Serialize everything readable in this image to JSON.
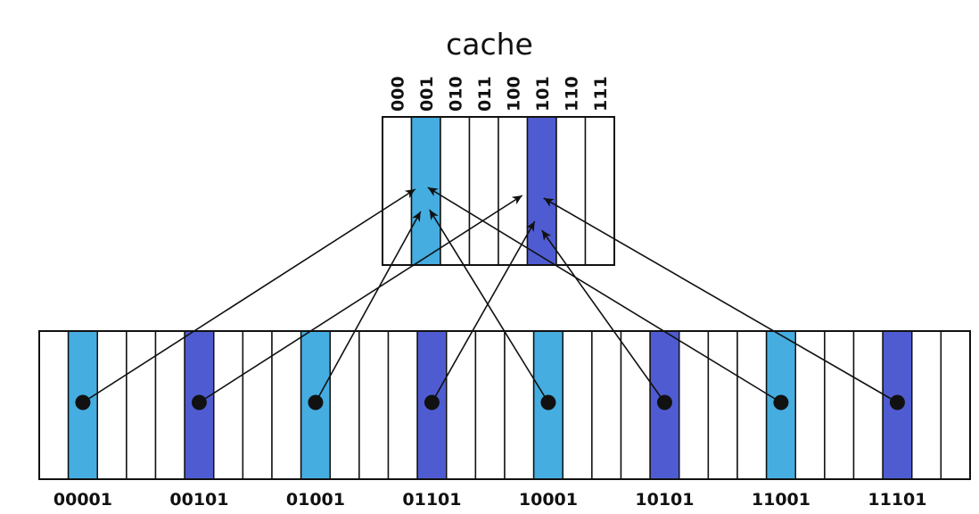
{
  "cache": {
    "title": "cache",
    "set_labels": [
      "000",
      "001",
      "010",
      "011",
      "100",
      "101",
      "110",
      "111"
    ],
    "highlighted_sets": {
      "001": "#45ade0",
      "101": "#4f5cd1"
    }
  },
  "memory": {
    "addresses": [
      "00001",
      "00101",
      "01001",
      "01101",
      "10001",
      "10101",
      "11001",
      "11101"
    ],
    "colors": {
      "light": "#45ade0",
      "dark": "#4f5cd1"
    }
  },
  "mappings": [
    {
      "from": "00001",
      "to": "001"
    },
    {
      "from": "00101",
      "to": "101"
    },
    {
      "from": "01001",
      "to": "001"
    },
    {
      "from": "01101",
      "to": "101"
    },
    {
      "from": "10001",
      "to": "001"
    },
    {
      "from": "10101",
      "to": "101"
    },
    {
      "from": "11001",
      "to": "001"
    },
    {
      "from": "11101",
      "to": "101"
    }
  ]
}
